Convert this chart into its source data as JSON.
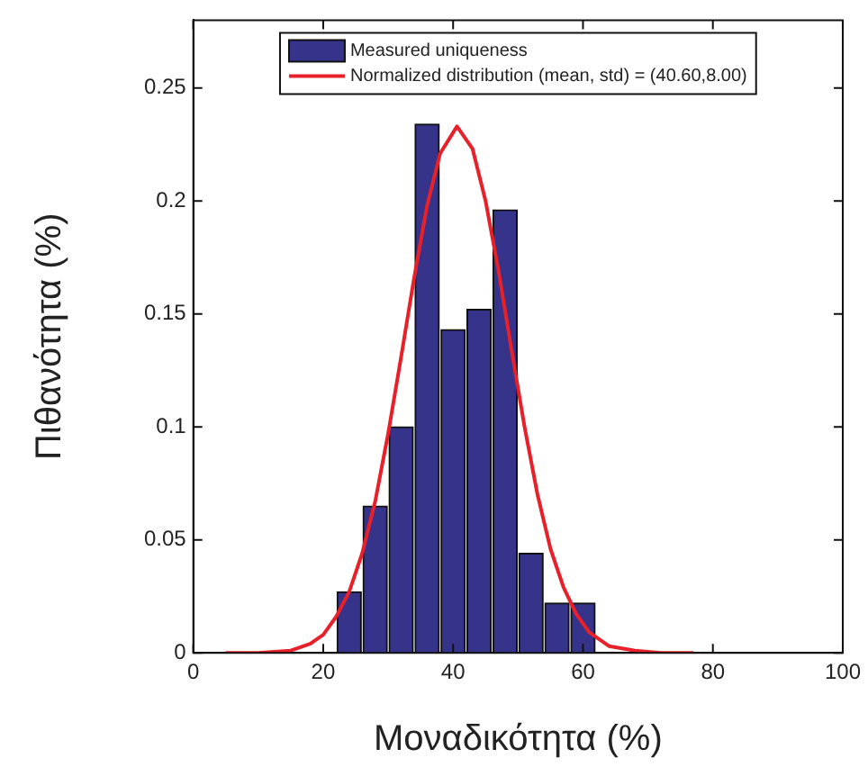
{
  "chart_data": {
    "type": "histogram",
    "xlabel": "Μοναδικότητα (%)",
    "ylabel": "Πιθανότητα (%)",
    "xlim": [
      0,
      100
    ],
    "xticks": [
      0,
      20,
      40,
      60,
      80,
      100
    ],
    "ylim": [
      0,
      0.28
    ],
    "yticks": [
      0,
      0.05,
      0.1,
      0.15,
      0.2,
      0.25
    ],
    "grid": false,
    "legend": "top",
    "series": [
      {
        "name": "Measured uniqueness",
        "type": "histogram",
        "color": "#35338a",
        "bins": [
          22,
          26,
          30,
          34,
          38,
          42,
          46,
          50,
          54,
          58,
          62
        ],
        "values": [
          0.027,
          0.065,
          0.1,
          0.234,
          0.143,
          0.152,
          0.196,
          0.044,
          0.022,
          0.022
        ]
      },
      {
        "name": "Normalized distribution (mean, std) = (40.60,8.00)",
        "type": "line",
        "color": "#e8202a",
        "x": [
          5,
          10,
          15,
          18,
          20,
          22,
          24,
          26,
          28,
          30,
          32,
          34,
          36,
          38,
          40.6,
          43,
          45,
          47,
          49,
          51,
          53,
          55,
          57,
          59,
          61,
          64,
          68,
          72,
          77
        ],
        "values": [
          0,
          0,
          0.001,
          0.004,
          0.008,
          0.016,
          0.027,
          0.044,
          0.067,
          0.097,
          0.131,
          0.166,
          0.198,
          0.221,
          0.233,
          0.223,
          0.2,
          0.169,
          0.134,
          0.1,
          0.07,
          0.046,
          0.029,
          0.017,
          0.009,
          0.003,
          0.001,
          0,
          0
        ]
      }
    ]
  }
}
